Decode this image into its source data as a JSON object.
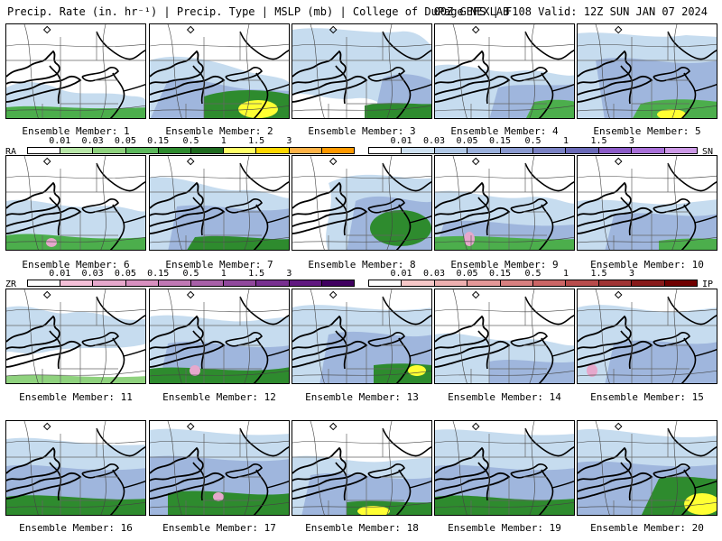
{
  "header": {
    "left": "Precip. Rate (in. hr⁻¹) | Precip. Type | MSLP (mb) | College of DuPage NEXLAB",
    "right": "00Z GEFS | F108 Valid: 12Z SUN JAN 07 2024"
  },
  "members": [
    {
      "label": "Ensemble Member: 1"
    },
    {
      "label": "Ensemble Member: 2"
    },
    {
      "label": "Ensemble Member: 3"
    },
    {
      "label": "Ensemble Member: 4"
    },
    {
      "label": "Ensemble Member: 5"
    },
    {
      "label": "Ensemble Member: 6"
    },
    {
      "label": "Ensemble Member: 7"
    },
    {
      "label": "Ensemble Member: 8"
    },
    {
      "label": "Ensemble Member: 9"
    },
    {
      "label": "Ensemble Member: 10"
    },
    {
      "label": "Ensemble Member: 11"
    },
    {
      "label": "Ensemble Member: 12"
    },
    {
      "label": "Ensemble Member: 13"
    },
    {
      "label": "Ensemble Member: 14"
    },
    {
      "label": "Ensemble Member: 15"
    },
    {
      "label": "Ensemble Member: 16"
    },
    {
      "label": "Ensemble Member: 17"
    },
    {
      "label": "Ensemble Member: 18"
    },
    {
      "label": "Ensemble Member: 19"
    },
    {
      "label": "Ensemble Member: 20"
    }
  ],
  "colorbars": {
    "ra": {
      "label": "RA",
      "ticks": [
        "0.01",
        "0.03",
        "0.05",
        "0.15",
        "0.5",
        "1",
        "1.5",
        "3"
      ],
      "colors": [
        "#ffffff",
        "#b8e6a8",
        "#8fd27e",
        "#5cb85c",
        "#2e8b2e",
        "#1f6b1f",
        "#ffff66",
        "#ffd700",
        "#ffb347",
        "#ff9900"
      ]
    },
    "sn": {
      "label": "SN",
      "ticks": [
        "0.01",
        "0.03",
        "0.05",
        "0.15",
        "0.5",
        "1",
        "1.5",
        "3"
      ],
      "colors": [
        "#ffffff",
        "#cde0f0",
        "#b0c8e6",
        "#9ab0dc",
        "#8a9ad0",
        "#7a82c4",
        "#6a6ab8",
        "#8c5cc8",
        "#a870d8",
        "#cc99e6"
      ]
    },
    "zr": {
      "label": "ZR",
      "ticks": [
        "0.01",
        "0.03",
        "0.05",
        "0.15",
        "0.5",
        "1",
        "1.5",
        "3"
      ],
      "colors": [
        "#ffffff",
        "#f5c0d8",
        "#e6a8cc",
        "#d890c0",
        "#c078b4",
        "#a860a8",
        "#90489c",
        "#783090",
        "#601880",
        "#400060"
      ]
    },
    "ip": {
      "label": "IP",
      "ticks": [
        "0.01",
        "0.03",
        "0.05",
        "0.15",
        "0.5",
        "1",
        "1.5",
        "3"
      ],
      "colors": [
        "#ffffff",
        "#f7c8c8",
        "#eeb0b0",
        "#e49898",
        "#d88080",
        "#cc6666",
        "#b84c4c",
        "#a03333",
        "#881a1a",
        "#700000"
      ]
    }
  },
  "colors": {
    "snow_light": "#c6dcef",
    "snow_mid": "#9fb6dd",
    "snow_dark": "#8a96cf",
    "rain_light": "#8fd27e",
    "rain_mid": "#4cae4c",
    "rain_dark": "#2e8b2e",
    "rain_heavy": "#ffff33",
    "zr": "#e6a8cc",
    "coast": "#000000",
    "border": "#666666",
    "isobar": "#444444"
  }
}
